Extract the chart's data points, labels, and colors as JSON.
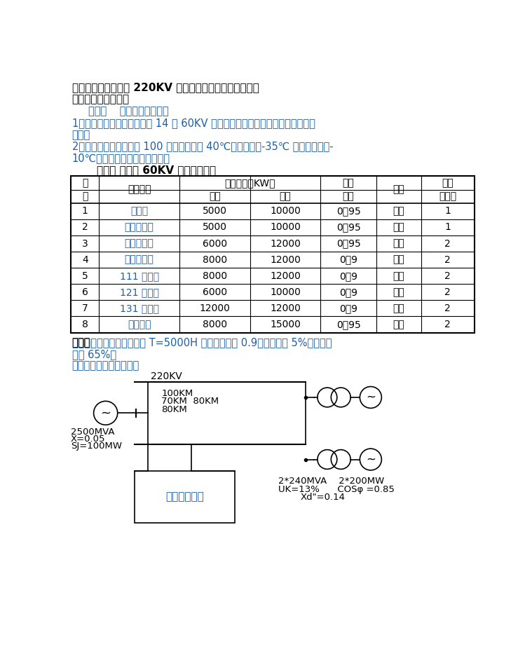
{
  "title1": "一、设计题目：浑河 220KV 一次降压变电所电气部分设计",
  "title2": "二、原始资料及依据",
  "subtitle1": "（壹）    变电所概况介绍：",
  "para1_l1": "1．变电所为地区变电所，以 14 回 60KV 线路向地区用户送电。主要用户为工业",
  "para1_l2": "用户。",
  "para2_l1": "2．所址地势平坦，海拔 100 米，最高气温 40℃，最低气温-35℃ 年平均温度为-",
  "para2_l2": "10℃，空气无污染，交通便利。",
  "table_title": "（二） 变电所 60KV 的用户负荷表",
  "table_rows": [
    [
      "1",
      "机械厂",
      "5000",
      "10000",
      "0．95",
      "架空",
      "1"
    ],
    [
      "2",
      "东科科技圆",
      "5000",
      "10000",
      "0．95",
      "架空",
      "1"
    ],
    [
      "3",
      "数字机床厂",
      "6000",
      "12000",
      "0．95",
      "架空",
      "2"
    ],
    [
      "4",
      "高压电气厂",
      "8000",
      "12000",
      "0．9",
      "架空",
      "2"
    ],
    [
      "5",
      "111 变电所",
      "8000",
      "12000",
      "0．9",
      "架空",
      "2"
    ],
    [
      "6",
      "121 变电所",
      "6000",
      "10000",
      "0．9",
      "架空",
      "2"
    ],
    [
      "7",
      "131 变电所",
      "12000",
      "12000",
      "0．9",
      "架空",
      "2"
    ],
    [
      "8",
      "市工业圆",
      "8000",
      "15000",
      "0．95",
      "架空",
      "2"
    ]
  ],
  "para3_l1": "（三）最大负荷利用小时数 T=5000H 负荷同时系数 0.9，线损率为 5%，重要负",
  "para3_h": "（三）",
  "para3_l2": "荷占 65%。",
  "para4": "（四）电力系统接线方式",
  "text_color": "#1a5fa8",
  "black_color": "#000000",
  "bg_color": "#ffffff",
  "source_label_l1": "2500MVA",
  "source_label_l2": "X=0.05",
  "source_label_l3": "SJ=100MW",
  "line_label_l1": "100KM",
  "line_label_l2": "70KM  80KM",
  "line_label_l3": "80KM",
  "tr_label_l1": "2*240MVA    2*200MW",
  "tr_label_l2": "UK=13%      COSφ =0.85",
  "tr_label_l3": "Xd\"=0.14",
  "substation_label": "待设计变电所"
}
